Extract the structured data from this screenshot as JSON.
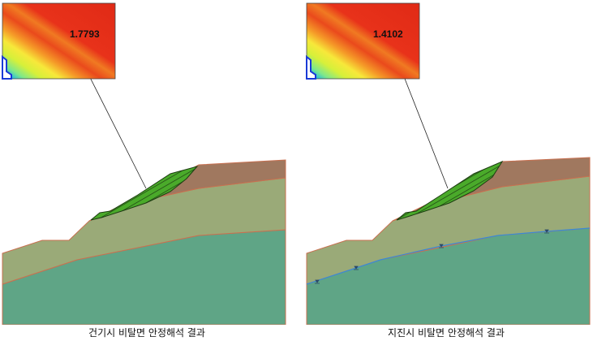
{
  "panels": [
    {
      "id": "dry",
      "caption": "건기시 비탈면 안정해석 결과",
      "factor_of_safety": "1.7793",
      "water_table": false
    },
    {
      "id": "seismic",
      "caption": "지진시 비탈면 안정해석 결과",
      "factor_of_safety": "1.4102",
      "water_table": true
    }
  ],
  "colors": {
    "top_soil": "#a0785f",
    "middle_layer": "#9aaa78",
    "rock_layer": "#5fa586",
    "layer_outline": "#c87050",
    "slip_mass": "#4aaa2a",
    "water_table": "#3a8ad6",
    "contour_high": "#e8321a",
    "contour_low": "#1a3ad6"
  }
}
